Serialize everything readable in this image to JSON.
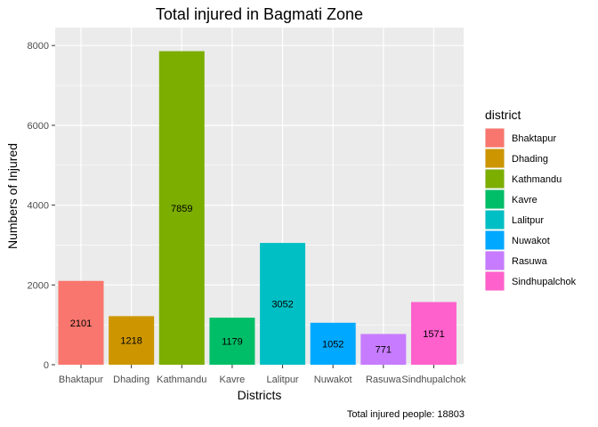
{
  "chart_data": {
    "type": "bar",
    "title": "Total injured in Bagmati Zone",
    "xlabel": "Districts",
    "ylabel": "Numbers of Injured",
    "caption": "Total injured people: 18803",
    "ylim": [
      0,
      8450
    ],
    "yticks": [
      0,
      2000,
      4000,
      6000,
      8000
    ],
    "grid": true,
    "legend": {
      "title": "district",
      "placement": "right"
    },
    "categories": [
      "Bhaktapur",
      "Dhading",
      "Kathmandu",
      "Kavre",
      "Lalitpur",
      "Nuwakot",
      "Rasuwa",
      "Sindhupalchok"
    ],
    "values": [
      2101,
      1218,
      7859,
      1179,
      3052,
      1052,
      771,
      1571
    ],
    "colors": [
      "#F8766D",
      "#CD9600",
      "#7CAE00",
      "#00BE67",
      "#00BFC4",
      "#00A9FF",
      "#C77CFF",
      "#FF61CC"
    ]
  }
}
